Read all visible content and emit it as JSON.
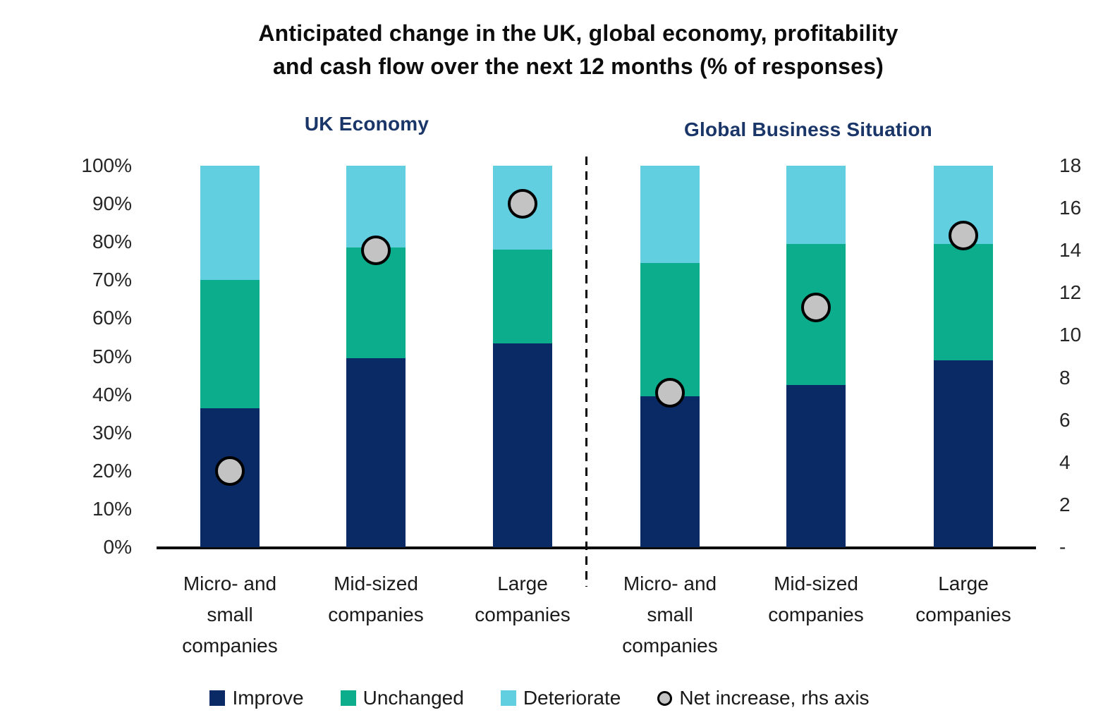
{
  "title": "Anticipated change in the UK, global economy, profitability\nand cash flow over the next 12 months (% of responses)",
  "legend": {
    "items": [
      {
        "label": "Improve"
      },
      {
        "label": "Unchanged"
      },
      {
        "label": "Deteriorate"
      },
      {
        "label": "Net increase, rhs axis"
      }
    ]
  },
  "chart_data": {
    "type": "bar",
    "variant": "100%-stacked columns with net-increase scatter markers on right axis",
    "title": "Anticipated change in the UK, global economy, profitability and cash flow over the next 12 months (% of responses)",
    "grid": false,
    "left_axis": {
      "range": [
        0,
        100
      ],
      "step": 10,
      "labels": [
        "0%",
        "10%",
        "20%",
        "30%",
        "40%",
        "50%",
        "60%",
        "70%",
        "80%",
        "90%",
        "100%"
      ]
    },
    "right_axis": {
      "range": [
        0,
        18
      ],
      "step": 2,
      "labels": [
        "-",
        "2",
        "4",
        "6",
        "8",
        "10",
        "12",
        "14",
        "16",
        "18"
      ]
    },
    "panels": [
      {
        "title": "UK Economy",
        "categories": [
          "Micro- and\nsmall\ncompanies",
          "Mid-sized\ncompanies",
          "Large\ncompanies"
        ],
        "series": [
          {
            "name": "Improve",
            "values": [
              36.5,
              49.5,
              53.5
            ]
          },
          {
            "name": "Unchanged",
            "values": [
              33.5,
              29.0,
              24.5
            ]
          },
          {
            "name": "Deteriorate",
            "values": [
              30.0,
              21.5,
              22.0
            ]
          }
        ],
        "net_increase_rhs": [
          3.6,
          14.0,
          16.2
        ]
      },
      {
        "title": "Global Business Situation",
        "categories": [
          "Micro- and\nsmall\ncompanies",
          "Mid-sized\ncompanies",
          "Large\ncompanies"
        ],
        "series": [
          {
            "name": "Improve",
            "values": [
              39.5,
              42.5,
              49.0
            ]
          },
          {
            "name": "Unchanged",
            "values": [
              35.0,
              37.0,
              30.5
            ]
          },
          {
            "name": "Deteriorate",
            "values": [
              25.5,
              20.5,
              20.5
            ]
          }
        ],
        "net_increase_rhs": [
          7.3,
          11.3,
          14.7
        ]
      }
    ],
    "colors": {
      "improve": "#0A2A66",
      "unchanged": "#0CAD8C",
      "deteriorate": "#61CFE0",
      "net_marker_fill": "#C3C3C3",
      "net_marker_stroke": "#000000",
      "panel_title": "#1A3668"
    }
  }
}
